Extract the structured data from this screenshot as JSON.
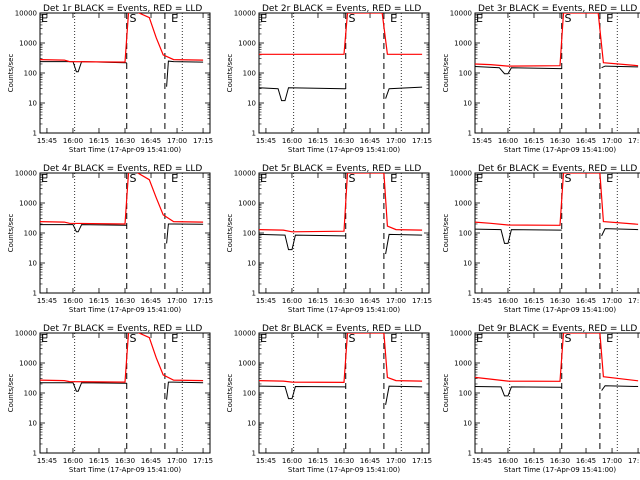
{
  "figure": {
    "background": "#ffffff",
    "black_color": "#000000",
    "red_color": "#ff0000"
  },
  "chart_data": [
    {
      "type": "line",
      "title": "Det 1r BLACK = Events, RED = LLD",
      "xlabel": "Start Time (17-Apr-09 15:41:00)",
      "ylabel": "Counts/sec",
      "x_ticks": [
        "15:45",
        "16:00",
        "16:15",
        "16:30",
        "16:45",
        "17:00",
        "17:15"
      ],
      "y_ticks": [
        "1",
        "10",
        "100",
        "1000",
        "10000"
      ],
      "ylim": [
        1,
        10000
      ],
      "log_y": true,
      "markers": [
        {
          "label": "E",
          "time": "15:41"
        },
        {
          "label": "S",
          "time": "16:32"
        },
        {
          "label": "E",
          "time": "16:56"
        }
      ],
      "dashed_lines": [
        "16:31",
        "16:53"
      ],
      "dotted_lines": [
        "16:01",
        "17:03"
      ],
      "series": [
        {
          "color": "#000000",
          "x": [
            "15:41",
            "16:00",
            "16:02",
            "16:03",
            "16:05",
            "16:30",
            "16:31",
            "16:32",
            "16:52",
            "16:54",
            "16:55",
            "16:58",
            "17:15"
          ],
          "y": [
            240,
            240,
            110,
            110,
            240,
            220,
            220,
            null,
            null,
            35,
            250,
            240,
            230
          ]
        },
        {
          "color": "#ff0000",
          "x": [
            "15:41",
            "15:55",
            "15:58",
            "16:30",
            "16:32",
            "16:35",
            "16:44",
            "16:48",
            "16:52",
            "16:58",
            "17:15"
          ],
          "y": [
            280,
            270,
            240,
            230,
            10000,
            12000,
            7000,
            1500,
            400,
            280,
            270
          ]
        }
      ]
    },
    {
      "type": "line",
      "title": "Det 2r BLACK = Events, RED = LLD",
      "xlabel": "Start Time (17-Apr-09 15:41:00)",
      "ylabel": "Counts/sec",
      "x_ticks": [
        "15:45",
        "16:00",
        "16:15",
        "16:30",
        "16:45",
        "17:00",
        "17:15"
      ],
      "y_ticks": [
        "1",
        "10",
        "100",
        "1000",
        "10000"
      ],
      "ylim": [
        1,
        10000
      ],
      "log_y": true,
      "markers": [
        {
          "label": "E",
          "time": "15:41"
        },
        {
          "label": "S",
          "time": "16:32"
        },
        {
          "label": "E",
          "time": "16:56"
        }
      ],
      "dashed_lines": [
        "16:31",
        "16:53"
      ],
      "dotted_lines": [
        "16:01",
        "17:03"
      ],
      "series": [
        {
          "color": "#000000",
          "x": [
            "15:41",
            "15:52",
            "15:54",
            "15:56",
            "15:58",
            "16:30",
            "16:31",
            "16:32",
            "16:52",
            "16:54",
            "16:56",
            "17:15"
          ],
          "y": [
            32,
            30,
            12,
            12,
            32,
            30,
            30,
            null,
            null,
            14,
            30,
            34
          ]
        },
        {
          "color": "#ff0000",
          "x": [
            "15:41",
            "16:30",
            "16:32",
            "16:52",
            "16:55",
            "17:15"
          ],
          "y": [
            420,
            420,
            10000,
            10000,
            420,
            420
          ]
        }
      ]
    },
    {
      "type": "line",
      "title": "Det 3r BLACK = Events, RED = LLD",
      "xlabel": "Start Time (17-Apr-09 15:41:00)",
      "ylabel": "Counts/sec",
      "x_ticks": [
        "15:45",
        "16:00",
        "16:15",
        "16:30",
        "16:45",
        "17:00",
        "17:15"
      ],
      "y_ticks": [
        "1",
        "10",
        "100",
        "1000",
        "10000"
      ],
      "ylim": [
        1,
        10000
      ],
      "log_y": true,
      "markers": [
        {
          "label": "E",
          "time": "15:41"
        },
        {
          "label": "S",
          "time": "16:32"
        },
        {
          "label": "E",
          "time": "16:56"
        }
      ],
      "dashed_lines": [
        "16:31",
        "16:53"
      ],
      "dotted_lines": [
        "16:01",
        "17:03"
      ],
      "series": [
        {
          "color": "#000000",
          "x": [
            "15:41",
            "15:55",
            "15:58",
            "16:00",
            "16:02",
            "16:30",
            "16:31",
            "16:32",
            "16:52",
            "16:54",
            "16:56",
            "17:15"
          ],
          "y": [
            165,
            150,
            95,
            95,
            150,
            140,
            140,
            null,
            null,
            150,
            170,
            160
          ]
        },
        {
          "color": "#ff0000",
          "x": [
            "15:41",
            "15:50",
            "16:00",
            "16:30",
            "16:32",
            "16:52",
            "16:55",
            "17:15"
          ],
          "y": [
            200,
            190,
            170,
            175,
            10000,
            10000,
            220,
            175
          ]
        }
      ]
    },
    {
      "type": "line",
      "title": "Det 4r BLACK = Events, RED = LLD",
      "xlabel": "Start Time (17-Apr-09 15:41:00)",
      "ylabel": "Counts/sec",
      "x_ticks": [
        "15:45",
        "16:00",
        "16:15",
        "16:30",
        "16:45",
        "17:00",
        "17:15"
      ],
      "y_ticks": [
        "1",
        "10",
        "100",
        "1000",
        "10000"
      ],
      "ylim": [
        1,
        10000
      ],
      "log_y": true,
      "markers": [
        {
          "label": "E",
          "time": "15:41"
        },
        {
          "label": "S",
          "time": "16:32"
        },
        {
          "label": "E",
          "time": "16:56"
        }
      ],
      "dashed_lines": [
        "16:31",
        "16:53"
      ],
      "dotted_lines": [
        "16:01",
        "17:03"
      ],
      "series": [
        {
          "color": "#000000",
          "x": [
            "15:41",
            "16:00",
            "16:02",
            "16:03",
            "16:05",
            "16:30",
            "16:31",
            "16:32",
            "16:52",
            "16:54",
            "16:55",
            "16:58",
            "17:15"
          ],
          "y": [
            190,
            190,
            110,
            110,
            190,
            180,
            180,
            null,
            null,
            45,
            200,
            200,
            195
          ]
        },
        {
          "color": "#ff0000",
          "x": [
            "15:41",
            "15:55",
            "15:58",
            "16:30",
            "16:32",
            "16:35",
            "16:44",
            "16:48",
            "16:52",
            "16:58",
            "17:15"
          ],
          "y": [
            240,
            230,
            210,
            200,
            10000,
            12000,
            6000,
            1500,
            400,
            240,
            230
          ]
        }
      ]
    },
    {
      "type": "line",
      "title": "Det 5r BLACK = Events, RED = LLD",
      "xlabel": "Start Time (17-Apr-09 15:41:00)",
      "ylabel": "Counts/sec",
      "x_ticks": [
        "15:45",
        "16:00",
        "16:15",
        "16:30",
        "16:45",
        "17:00",
        "17:15"
      ],
      "y_ticks": [
        "1",
        "10",
        "100",
        "1000",
        "10000"
      ],
      "ylim": [
        1,
        10000
      ],
      "log_y": true,
      "markers": [
        {
          "label": "E",
          "time": "15:41"
        },
        {
          "label": "S",
          "time": "16:32"
        },
        {
          "label": "E",
          "time": "16:56"
        }
      ],
      "dashed_lines": [
        "16:31",
        "16:53"
      ],
      "dotted_lines": [
        "16:01",
        "17:03"
      ],
      "series": [
        {
          "color": "#000000",
          "x": [
            "15:41",
            "15:56",
            "15:58",
            "16:00",
            "16:02",
            "16:30",
            "16:31",
            "16:32",
            "16:52",
            "16:54",
            "16:56",
            "17:15"
          ],
          "y": [
            90,
            85,
            28,
            28,
            85,
            80,
            80,
            null,
            null,
            20,
            90,
            85
          ]
        },
        {
          "color": "#ff0000",
          "x": [
            "15:41",
            "15:55",
            "16:00",
            "16:30",
            "16:32",
            "16:53",
            "16:55",
            "17:00",
            "17:15"
          ],
          "y": [
            130,
            125,
            110,
            115,
            10000,
            10000,
            170,
            130,
            125
          ]
        }
      ]
    },
    {
      "type": "line",
      "title": "Det 6r BLACK = Events, RED = LLD",
      "xlabel": "Start Time (17-Apr-09 15:41:00)",
      "ylabel": "Counts/sec",
      "x_ticks": [
        "15:45",
        "16:00",
        "16:15",
        "16:30",
        "16:45",
        "17:00",
        "17:15"
      ],
      "y_ticks": [
        "1",
        "10",
        "100",
        "1000",
        "10000"
      ],
      "ylim": [
        1,
        10000
      ],
      "log_y": true,
      "markers": [
        {
          "label": "E",
          "time": "15:41"
        },
        {
          "label": "S",
          "time": "16:32"
        },
        {
          "label": "E",
          "time": "16:56"
        }
      ],
      "dashed_lines": [
        "16:31",
        "16:53"
      ],
      "dotted_lines": [
        "16:01",
        "17:03"
      ],
      "series": [
        {
          "color": "#000000",
          "x": [
            "15:41",
            "15:56",
            "15:58",
            "16:00",
            "16:02",
            "16:30",
            "16:31",
            "16:32",
            "16:52",
            "16:54",
            "16:56",
            "17:15"
          ],
          "y": [
            135,
            130,
            45,
            45,
            130,
            125,
            125,
            null,
            null,
            80,
            140,
            130
          ]
        },
        {
          "color": "#ff0000",
          "x": [
            "15:41",
            "15:50",
            "16:00",
            "16:30",
            "16:32",
            "16:53",
            "16:55",
            "17:15"
          ],
          "y": [
            230,
            210,
            185,
            180,
            10000,
            10000,
            240,
            195
          ]
        }
      ]
    },
    {
      "type": "line",
      "title": "Det 7r BLACK = Events, RED = LLD",
      "xlabel": "Start Time (17-Apr-09 15:41:00)",
      "ylabel": "Counts/sec",
      "x_ticks": [
        "15:45",
        "16:00",
        "16:15",
        "16:30",
        "16:45",
        "17:00",
        "17:15"
      ],
      "y_ticks": [
        "1",
        "10",
        "100",
        "1000",
        "10000"
      ],
      "ylim": [
        1,
        10000
      ],
      "log_y": true,
      "markers": [
        {
          "label": "E",
          "time": "15:41"
        },
        {
          "label": "S",
          "time": "16:32"
        },
        {
          "label": "E",
          "time": "16:56"
        }
      ],
      "dashed_lines": [
        "16:31",
        "16:53"
      ],
      "dotted_lines": [
        "16:01",
        "17:03"
      ],
      "series": [
        {
          "color": "#000000",
          "x": [
            "15:41",
            "16:00",
            "16:02",
            "16:03",
            "16:05",
            "16:30",
            "16:31",
            "16:32",
            "16:52",
            "16:54",
            "16:55",
            "16:58",
            "17:15"
          ],
          "y": [
            220,
            220,
            115,
            115,
            220,
            210,
            210,
            null,
            null,
            60,
            230,
            230,
            220
          ]
        },
        {
          "color": "#ff0000",
          "x": [
            "15:41",
            "15:55",
            "15:58",
            "16:30",
            "16:32",
            "16:35",
            "16:44",
            "16:48",
            "16:52",
            "16:58",
            "17:15"
          ],
          "y": [
            270,
            260,
            240,
            230,
            10000,
            12000,
            7000,
            1500,
            400,
            270,
            260
          ]
        }
      ]
    },
    {
      "type": "line",
      "title": "Det 8r BLACK = Events, RED = LLD",
      "xlabel": "Start Time (17-Apr-09 15:41:00)",
      "ylabel": "Counts/sec",
      "x_ticks": [
        "15:45",
        "16:00",
        "16:15",
        "16:30",
        "16:45",
        "17:00",
        "17:15"
      ],
      "y_ticks": [
        "1",
        "10",
        "100",
        "1000",
        "10000"
      ],
      "ylim": [
        1,
        10000
      ],
      "log_y": true,
      "markers": [
        {
          "label": "E",
          "time": "15:41"
        },
        {
          "label": "S",
          "time": "16:32"
        },
        {
          "label": "E",
          "time": "16:56"
        }
      ],
      "dashed_lines": [
        "16:31",
        "16:53"
      ],
      "dotted_lines": [
        "16:01",
        "17:03"
      ],
      "series": [
        {
          "color": "#000000",
          "x": [
            "15:41",
            "15:56",
            "15:58",
            "16:00",
            "16:02",
            "16:30",
            "16:31",
            "16:32",
            "16:52",
            "16:54",
            "16:56",
            "17:15"
          ],
          "y": [
            170,
            165,
            65,
            65,
            165,
            160,
            160,
            null,
            null,
            40,
            170,
            160
          ]
        },
        {
          "color": "#ff0000",
          "x": [
            "15:41",
            "15:55",
            "16:00",
            "16:30",
            "16:32",
            "16:53",
            "16:55",
            "17:00",
            "17:15"
          ],
          "y": [
            260,
            250,
            230,
            225,
            10000,
            10000,
            330,
            260,
            250
          ]
        }
      ]
    },
    {
      "type": "line",
      "title": "Det 9r BLACK = Events, RED = LLD",
      "xlabel": "Start Time (17-Apr-09 15:41:00)",
      "ylabel": "Counts/sec",
      "x_ticks": [
        "15:45",
        "16:00",
        "16:15",
        "16:30",
        "16:45",
        "17:00",
        "17:15"
      ],
      "y_ticks": [
        "1",
        "10",
        "100",
        "1000",
        "10000"
      ],
      "ylim": [
        1,
        10000
      ],
      "log_y": true,
      "markers": [
        {
          "label": "E",
          "time": "15:41"
        },
        {
          "label": "S",
          "time": "16:32"
        },
        {
          "label": "E",
          "time": "16:56"
        }
      ],
      "dashed_lines": [
        "16:31",
        "16:53"
      ],
      "dotted_lines": [
        "16:01",
        "17:03"
      ],
      "series": [
        {
          "color": "#000000",
          "x": [
            "15:41",
            "15:56",
            "15:58",
            "16:00",
            "16:02",
            "16:30",
            "16:31",
            "16:32",
            "16:52",
            "16:54",
            "16:56",
            "17:15"
          ],
          "y": [
            165,
            160,
            80,
            80,
            160,
            155,
            155,
            null,
            null,
            120,
            175,
            165
          ]
        },
        {
          "color": "#ff0000",
          "x": [
            "15:41",
            "15:50",
            "16:00",
            "16:30",
            "16:32",
            "16:53",
            "16:55",
            "17:15"
          ],
          "y": [
            330,
            290,
            250,
            245,
            10000,
            10000,
            350,
            255
          ]
        }
      ]
    }
  ]
}
